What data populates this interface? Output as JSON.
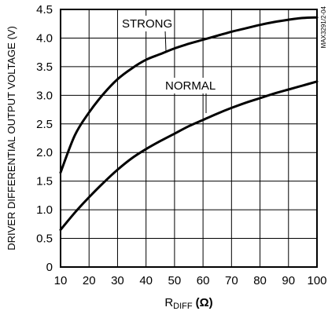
{
  "chart_data": {
    "type": "line",
    "title": "",
    "xlabel": "R_DIFF (Ω)",
    "xlabel_main": "R",
    "xlabel_sub": "DIFF",
    "xlabel_unit": "(Ω)",
    "ylabel": "DRIVER DIFFERENTIAL OUTPUT VOLTAGE (V)",
    "watermark": "MAX3291/2-04",
    "xlim": [
      10,
      100
    ],
    "ylim": [
      0,
      4.5
    ],
    "x_ticks": [
      10,
      20,
      30,
      40,
      50,
      60,
      70,
      80,
      90,
      100
    ],
    "y_ticks": [
      0,
      0.5,
      1.0,
      1.5,
      2.0,
      2.5,
      3.0,
      3.5,
      4.0,
      4.5
    ],
    "y_tick_labels": [
      "0",
      "0.5",
      "1.0",
      "1.5",
      "2.0",
      "2.5",
      "3.0",
      "3.5",
      "4.0",
      "4.5"
    ],
    "grid": true,
    "series": [
      {
        "name": "STRONG",
        "x": [
          10,
          15,
          20,
          25,
          30,
          35,
          40,
          45,
          50,
          55,
          60,
          65,
          70,
          75,
          80,
          85,
          90,
          95,
          100
        ],
        "values": [
          1.65,
          2.3,
          2.7,
          3.02,
          3.28,
          3.47,
          3.62,
          3.72,
          3.82,
          3.9,
          3.97,
          4.04,
          4.11,
          4.17,
          4.23,
          4.28,
          4.32,
          4.35,
          4.36
        ]
      },
      {
        "name": "NORMAL",
        "x": [
          10,
          15,
          20,
          25,
          30,
          35,
          40,
          45,
          50,
          55,
          60,
          65,
          70,
          75,
          80,
          85,
          90,
          95,
          100
        ],
        "values": [
          0.65,
          0.95,
          1.22,
          1.47,
          1.7,
          1.9,
          2.06,
          2.2,
          2.33,
          2.46,
          2.57,
          2.68,
          2.78,
          2.87,
          2.95,
          3.03,
          3.1,
          3.17,
          3.24
        ]
      }
    ]
  }
}
